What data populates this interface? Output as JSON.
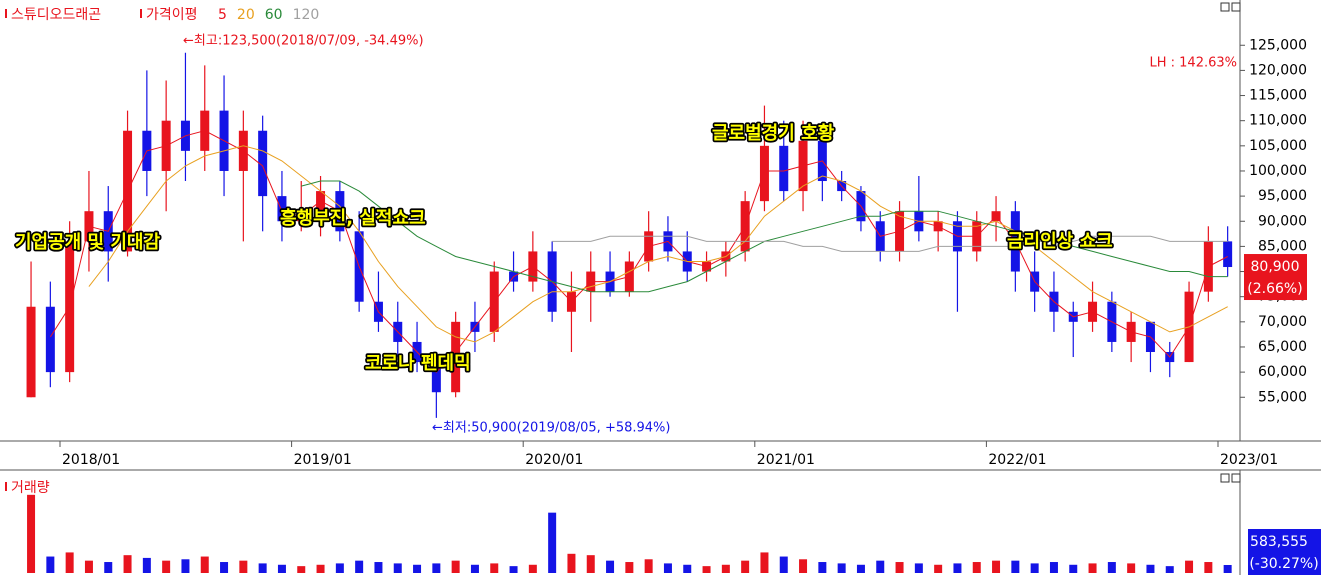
{
  "chart_data": [
    {
      "type": "candlestick",
      "title": "스튜디오드래곤",
      "legend_title": "가격이평",
      "up_color": "#e8141e",
      "down_color": "#1414e6",
      "x": [
        "2017/11",
        "2017/12",
        "2018/01",
        "2018/02",
        "2018/03",
        "2018/04",
        "2018/05",
        "2018/06",
        "2018/07",
        "2018/08",
        "2018/09",
        "2018/10",
        "2018/11",
        "2018/12",
        "2019/01",
        "2019/02",
        "2019/03",
        "2019/04",
        "2019/05",
        "2019/06",
        "2019/07",
        "2019/08",
        "2019/09",
        "2019/10",
        "2019/11",
        "2019/12",
        "2020/01",
        "2020/02",
        "2020/03",
        "2020/04",
        "2020/05",
        "2020/06",
        "2020/07",
        "2020/08",
        "2020/09",
        "2020/10",
        "2020/11",
        "2020/12",
        "2021/01",
        "2021/02",
        "2021/03",
        "2021/04",
        "2021/05",
        "2021/06",
        "2021/07",
        "2021/08",
        "2021/09",
        "2021/10",
        "2021/11",
        "2021/12",
        "2022/01",
        "2022/02",
        "2022/03",
        "2022/04",
        "2022/05",
        "2022/06",
        "2022/07",
        "2022/08",
        "2022/09",
        "2022/10",
        "2022/11",
        "2022/12",
        "2023/01"
      ],
      "open": [
        55000,
        73000,
        60000,
        86000,
        92000,
        84000,
        108000,
        100000,
        110000,
        104000,
        112000,
        100000,
        108000,
        95000,
        90000,
        92000,
        96000,
        88000,
        74000,
        70000,
        66000,
        62000,
        56000,
        70000,
        68000,
        80000,
        78000,
        84000,
        72000,
        76000,
        80000,
        76000,
        82000,
        88000,
        84000,
        80000,
        82000,
        84000,
        94000,
        105000,
        96000,
        106000,
        98000,
        96000,
        90000,
        84000,
        92000,
        88000,
        90000,
        84000,
        90000,
        92000,
        80000,
        76000,
        72000,
        70000,
        74000,
        66000,
        70000,
        64000,
        62000,
        76000,
        86000
      ],
      "high": [
        82000,
        78000,
        90000,
        100000,
        97000,
        112000,
        120000,
        118000,
        123500,
        121000,
        119000,
        112000,
        111000,
        100000,
        98000,
        99000,
        98000,
        92000,
        80000,
        74000,
        70000,
        64000,
        72000,
        74000,
        82000,
        84000,
        88000,
        86000,
        80000,
        84000,
        84000,
        84000,
        92000,
        91000,
        88000,
        84000,
        86000,
        96000,
        113000,
        110000,
        110000,
        107000,
        100000,
        97000,
        92000,
        94000,
        99000,
        92000,
        92000,
        92000,
        95000,
        94000,
        84000,
        80000,
        74000,
        78000,
        76000,
        72000,
        70000,
        66000,
        78000,
        89000,
        89000
      ],
      "low": [
        55000,
        57000,
        58000,
        80000,
        78000,
        83000,
        95000,
        92000,
        98000,
        100000,
        95000,
        86000,
        88000,
        86000,
        88000,
        87000,
        86000,
        72000,
        68000,
        63000,
        60000,
        50900,
        55000,
        64000,
        66000,
        76000,
        76000,
        70000,
        64000,
        70000,
        75000,
        75000,
        80000,
        82000,
        78000,
        78000,
        79000,
        82000,
        92000,
        94000,
        92000,
        94000,
        94000,
        88000,
        82000,
        82000,
        86000,
        84000,
        72000,
        82000,
        86000,
        76000,
        72000,
        68000,
        63000,
        68000,
        64000,
        62000,
        60000,
        59000,
        62000,
        74000,
        79000
      ],
      "close": [
        73000,
        60000,
        86000,
        92000,
        84000,
        108000,
        100000,
        110000,
        104000,
        112000,
        100000,
        108000,
        95000,
        90000,
        92000,
        96000,
        88000,
        74000,
        70000,
        66000,
        62000,
        56000,
        70000,
        68000,
        80000,
        78000,
        84000,
        72000,
        76000,
        80000,
        76000,
        82000,
        88000,
        84000,
        80000,
        82000,
        84000,
        94000,
        105000,
        96000,
        106000,
        98000,
        96000,
        90000,
        84000,
        92000,
        88000,
        90000,
        84000,
        90000,
        92000,
        80000,
        76000,
        72000,
        70000,
        74000,
        66000,
        70000,
        64000,
        62000,
        76000,
        86000,
        80900
      ],
      "series": [
        {
          "name": "5",
          "color": "#e8141e",
          "values": [
            null,
            67000,
            73000,
            89000,
            88000,
            96000,
            104000,
            105000,
            107000,
            108000,
            106000,
            104000,
            101000,
            92000,
            91000,
            94000,
            92000,
            81000,
            72000,
            68000,
            64000,
            60000,
            64000,
            69000,
            74000,
            79000,
            81000,
            78000,
            74000,
            78000,
            78000,
            79000,
            85000,
            86000,
            82000,
            81000,
            83000,
            89000,
            100000,
            100000,
            101000,
            102000,
            97000,
            93000,
            87000,
            88000,
            90000,
            89000,
            87000,
            87000,
            91000,
            86000,
            78000,
            74000,
            71000,
            72000,
            70000,
            68000,
            67000,
            63000,
            69000,
            81000,
            83000
          ]
        },
        {
          "name": "20",
          "color": "#e8a020",
          "values": [
            null,
            null,
            null,
            77000,
            82000,
            88000,
            93000,
            98000,
            101000,
            103000,
            104000,
            105000,
            104000,
            102000,
            99000,
            96000,
            93000,
            88000,
            82000,
            77000,
            73000,
            69000,
            67000,
            66000,
            68000,
            71000,
            74000,
            76000,
            76000,
            77000,
            78000,
            80000,
            82000,
            83000,
            82000,
            82000,
            83000,
            86000,
            91000,
            94000,
            97000,
            99000,
            98000,
            96000,
            93000,
            91000,
            90000,
            90000,
            89000,
            89000,
            90000,
            88000,
            85000,
            82000,
            79000,
            76000,
            74000,
            72000,
            70000,
            68000,
            69000,
            71000,
            73000
          ]
        },
        {
          "name": "60",
          "color": "#2a8a3a",
          "values": [
            null,
            null,
            null,
            null,
            null,
            null,
            null,
            null,
            null,
            null,
            null,
            null,
            null,
            null,
            97000,
            98000,
            98000,
            96000,
            93000,
            90000,
            87000,
            85000,
            83000,
            82000,
            81000,
            80000,
            79000,
            78000,
            77000,
            76000,
            76000,
            76000,
            76000,
            77000,
            78000,
            80000,
            82000,
            84000,
            86000,
            87000,
            88000,
            89000,
            90000,
            91000,
            91000,
            92000,
            92000,
            92000,
            91000,
            90000,
            89000,
            88000,
            87000,
            86000,
            85000,
            84000,
            83000,
            82000,
            81000,
            80000,
            80000,
            79000,
            79000
          ]
        },
        {
          "name": "120",
          "color": "#a0a0a0",
          "values": [
            null,
            null,
            null,
            null,
            null,
            null,
            null,
            null,
            null,
            null,
            null,
            null,
            null,
            null,
            null,
            null,
            null,
            null,
            null,
            null,
            null,
            null,
            null,
            null,
            null,
            null,
            null,
            86000,
            86000,
            86000,
            87000,
            87000,
            87000,
            87000,
            87000,
            86000,
            86000,
            86000,
            86000,
            86000,
            85000,
            85000,
            84000,
            84000,
            84000,
            84000,
            84000,
            85000,
            85000,
            85000,
            85000,
            85000,
            86000,
            86000,
            86000,
            87000,
            87000,
            87000,
            87000,
            86000,
            86000,
            86000,
            86000
          ]
        }
      ],
      "ylim": [
        46500,
        134000
      ],
      "yticks": [
        {
          "value": 55000,
          "label": "55,000"
        },
        {
          "value": 60000,
          "label": "60,000"
        },
        {
          "value": 65000,
          "label": "65,000"
        },
        {
          "value": 70000,
          "label": "70,000"
        },
        {
          "value": 75000,
          "label": "75,000"
        },
        {
          "value": 80000,
          "label": "80,000"
        },
        {
          "value": 85000,
          "label": "85,000"
        },
        {
          "value": 90000,
          "label": "90,000"
        },
        {
          "value": 95000,
          "label": "95,000"
        },
        {
          "value": 100000,
          "label": "100,000"
        },
        {
          "value": 105000,
          "label": "105,000"
        },
        {
          "value": 110000,
          "label": "110,000"
        },
        {
          "value": 115000,
          "label": "115,000"
        },
        {
          "value": 120000,
          "label": "120,000"
        },
        {
          "value": 125000,
          "label": "125,000"
        }
      ],
      "xticks": [
        "2018/01",
        "2019/01",
        "2020/01",
        "2021/01",
        "2022/01",
        "2023/01"
      ],
      "high_label": "←최고:123,500(2018/07/09, -34.49%)",
      "low_label": "←최저:50,900(2019/08/05, +58.94%)",
      "lh_label": "LH : 142.63%",
      "annotations": [
        "기업공개 및 기대감",
        "흥행부진, 실적쇼크",
        "코로나 펜데믹",
        "글로벌경기 호황",
        "금리인상 쇼크"
      ],
      "last_value": 80900,
      "last_label": "80,900",
      "change_label": "(2.66%)"
    },
    {
      "type": "bar",
      "title": "거래량",
      "values": [
        5700000,
        1200000,
        1500000,
        900000,
        800000,
        1300000,
        1100000,
        900000,
        1000000,
        1200000,
        800000,
        900000,
        700000,
        600000,
        500000,
        600000,
        700000,
        900000,
        800000,
        700000,
        600000,
        700000,
        900000,
        600000,
        700000,
        500000,
        600000,
        4400000,
        1400000,
        1300000,
        900000,
        800000,
        1000000,
        700000,
        600000,
        500000,
        600000,
        900000,
        1500000,
        1200000,
        1000000,
        800000,
        700000,
        600000,
        900000,
        800000,
        700000,
        600000,
        700000,
        800000,
        900000,
        900000,
        700000,
        800000,
        600000,
        700000,
        800000,
        700000,
        600000,
        500000,
        900000,
        800000,
        583555
      ],
      "ylim": [
        0,
        7000000
      ],
      "last_label": "583,555",
      "change_label": "(-30.27%)"
    }
  ]
}
